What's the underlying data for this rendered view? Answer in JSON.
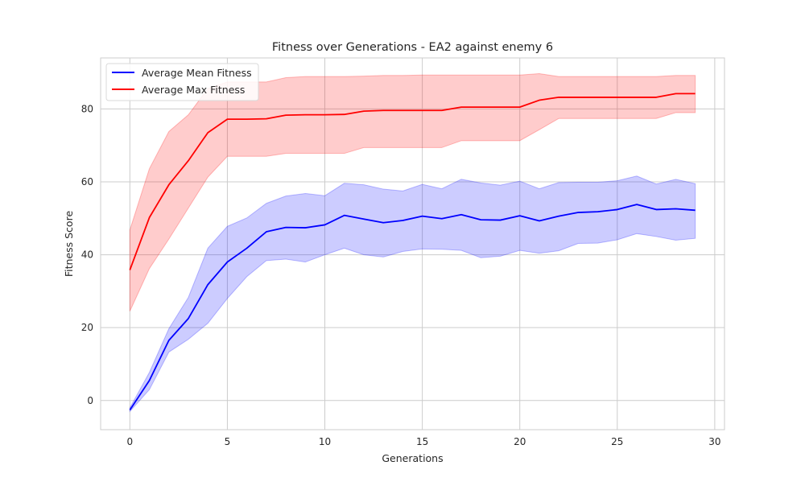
{
  "chart_data": {
    "type": "line",
    "title": "Fitness over Generations - EA2 against enemy 6",
    "xlabel": "Generations",
    "ylabel": "Fitness Score",
    "xlim": [
      -1.5,
      30.5
    ],
    "ylim": [
      -8,
      94
    ],
    "xticks": [
      0,
      5,
      10,
      15,
      20,
      25,
      30
    ],
    "yticks": [
      0,
      20,
      40,
      60,
      80
    ],
    "grid": true,
    "legend_position": "top-left",
    "x": [
      0,
      1,
      2,
      3,
      4,
      5,
      6,
      7,
      8,
      9,
      10,
      11,
      12,
      13,
      14,
      15,
      16,
      17,
      18,
      19,
      20,
      21,
      22,
      23,
      24,
      25,
      26,
      27,
      28,
      29
    ],
    "series": [
      {
        "name": "Average Mean Fitness",
        "color": "#0000ff",
        "band_color": "#0000ff",
        "values": [
          -2.6,
          5.5,
          16.5,
          22.5,
          31.8,
          38.0,
          41.8,
          46.3,
          47.5,
          47.4,
          48.2,
          50.8,
          49.8,
          48.8,
          49.4,
          50.6,
          49.9,
          51.0,
          49.6,
          49.5,
          50.7,
          49.3,
          50.6,
          51.6,
          51.8,
          52.4,
          53.8,
          52.4,
          52.6,
          52.2
        ],
        "lower": [
          -3.0,
          3.0,
          13.3,
          16.8,
          21.2,
          28.0,
          34.0,
          38.4,
          38.8,
          38.0,
          40.0,
          41.8,
          40.0,
          39.4,
          40.9,
          41.6,
          41.5,
          41.2,
          39.2,
          39.6,
          41.2,
          40.4,
          41.1,
          43.1,
          43.2,
          44.1,
          45.8,
          45.0,
          44.0,
          44.5
        ],
        "upper": [
          -2.0,
          7.7,
          19.7,
          28.3,
          41.8,
          47.8,
          50.1,
          54.1,
          56.1,
          56.8,
          56.2,
          59.6,
          59.2,
          58.0,
          57.5,
          59.3,
          58.1,
          60.7,
          59.7,
          59.1,
          60.2,
          58.1,
          59.8,
          59.9,
          59.9,
          60.3,
          61.6,
          59.4,
          60.7,
          59.5
        ]
      },
      {
        "name": "Average Max Fitness",
        "color": "#ff0000",
        "band_color": "#ff0000",
        "values": [
          35.8,
          50.2,
          59.2,
          65.8,
          73.5,
          77.2,
          77.2,
          77.3,
          78.3,
          78.4,
          78.4,
          78.5,
          79.4,
          79.6,
          79.6,
          79.6,
          79.6,
          80.5,
          80.5,
          80.5,
          80.5,
          82.4,
          83.2,
          83.2,
          83.2,
          83.2,
          83.2,
          83.2,
          84.2,
          84.2
        ],
        "lower": [
          24.5,
          36.2,
          44.3,
          52.8,
          61.3,
          67.0,
          67.0,
          67.0,
          67.8,
          67.8,
          67.8,
          67.8,
          69.4,
          69.4,
          69.4,
          69.4,
          69.4,
          71.3,
          71.3,
          71.3,
          71.3,
          74.3,
          77.4,
          77.4,
          77.4,
          77.4,
          77.4,
          77.4,
          79.0,
          79.0
        ],
        "upper": [
          46.8,
          63.6,
          73.8,
          78.4,
          85.6,
          87.4,
          87.4,
          87.4,
          88.6,
          88.9,
          88.9,
          88.9,
          89.0,
          89.2,
          89.2,
          89.3,
          89.3,
          89.3,
          89.3,
          89.3,
          89.3,
          89.7,
          88.9,
          88.9,
          88.9,
          88.9,
          88.9,
          88.9,
          89.2,
          89.2
        ]
      }
    ]
  }
}
